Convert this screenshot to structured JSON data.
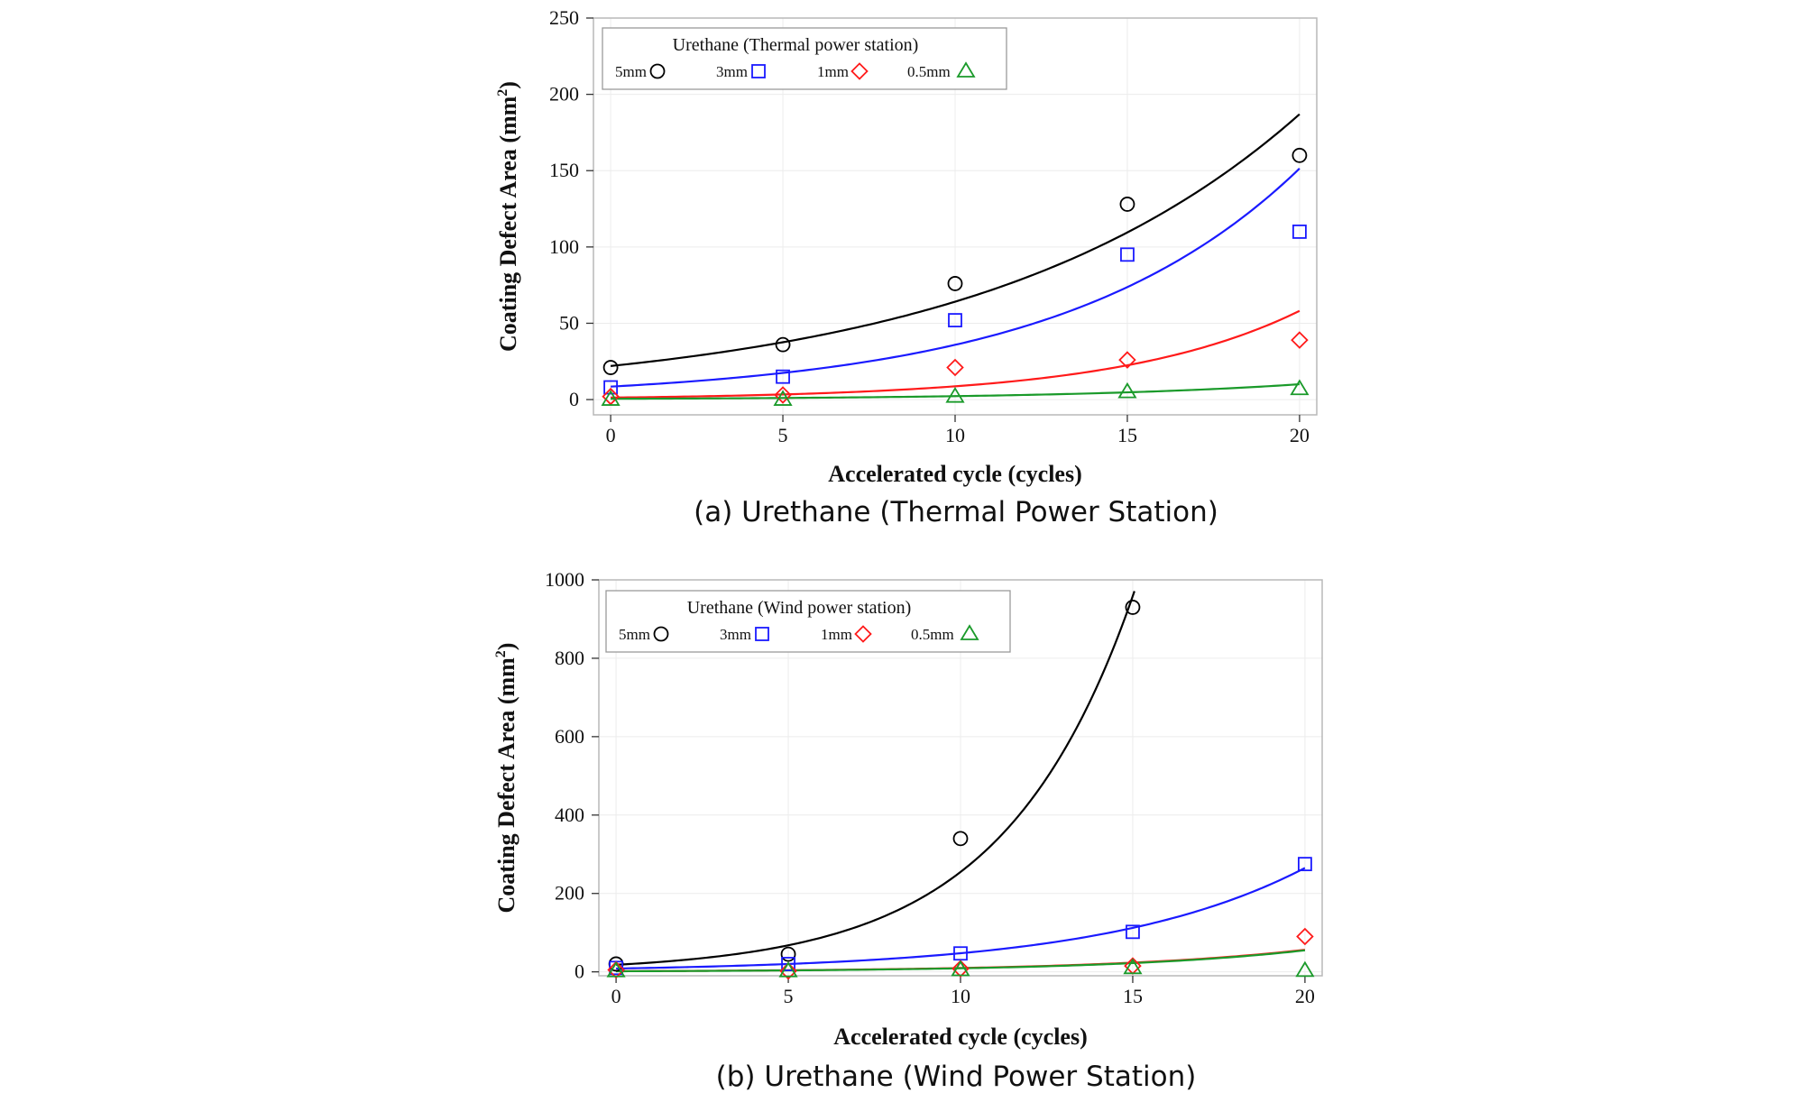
{
  "chart_data": [
    {
      "type": "scatter",
      "panel_id": "a",
      "title": "",
      "caption": "(a) Urethane (Thermal Power Station)",
      "legend_title": "Urethane (Thermal power station)",
      "legend_position": "top-left",
      "xlabel": "Accelerated cycle (cycles)",
      "ylabel_main": "Coating Defect Area (mm",
      "ylabel_sup": "2",
      "ylabel_close": ")",
      "xlim": [
        -0.5,
        20.5
      ],
      "ylim": [
        -10,
        250
      ],
      "xticks": [
        0,
        5,
        10,
        15,
        20
      ],
      "yticks": [
        0,
        50,
        100,
        150,
        200,
        250
      ],
      "grid": true,
      "x": [
        0,
        5,
        10,
        15,
        20
      ],
      "series": [
        {
          "name": "5mm",
          "marker": "circle",
          "color": "#000000",
          "values": [
            21,
            36,
            76,
            128,
            160
          ],
          "fit": {
            "a": 22.0,
            "b": 0.107
          }
        },
        {
          "name": "3mm",
          "marker": "square",
          "color": "#1a1aff",
          "values": [
            8,
            15,
            52,
            95,
            110
          ],
          "fit": {
            "a": 8.5,
            "b": 0.144
          }
        },
        {
          "name": "1mm",
          "marker": "diamond",
          "color": "#ff1a1a",
          "values": [
            2,
            3,
            21,
            26,
            39
          ],
          "fit": {
            "a": 1.3,
            "b": 0.19
          }
        },
        {
          "name": "0.5mm",
          "marker": "triangle",
          "color": "#1a9a2a",
          "values": [
            0,
            0,
            2,
            5,
            7
          ],
          "fit": {
            "a": 0.5,
            "b": 0.15
          }
        }
      ]
    },
    {
      "type": "scatter",
      "panel_id": "b",
      "title": "",
      "caption": "(b) Urethane (Wind Power Station)",
      "legend_title": "Urethane (Wind power station)",
      "legend_position": "top-left",
      "xlabel": "Accelerated cycle (cycles)",
      "ylabel_main": "Coating Defect Area (mm",
      "ylabel_sup": "2",
      "ylabel_close": ")",
      "xlim": [
        -0.5,
        20.5
      ],
      "ylim": [
        -10,
        1000
      ],
      "xticks": [
        0,
        5,
        10,
        15,
        20
      ],
      "yticks": [
        0,
        200,
        400,
        600,
        800,
        1000
      ],
      "grid": true,
      "x": [
        0,
        5,
        10,
        15,
        20
      ],
      "series": [
        {
          "name": "5mm",
          "marker": "circle",
          "color": "#000000",
          "values": [
            20,
            45,
            340,
            930,
            null
          ],
          "fit": {
            "a": 18.0,
            "b": 0.265,
            "xmax": 15.05
          }
        },
        {
          "name": "3mm",
          "marker": "square",
          "color": "#1a1aff",
          "values": [
            10,
            20,
            47,
            102,
            275
          ],
          "fit": {
            "a": 8.5,
            "b": 0.172
          }
        },
        {
          "name": "1mm",
          "marker": "diamond",
          "color": "#ff1a1a",
          "values": [
            5,
            2,
            8,
            15,
            90
          ],
          "fit": {
            "a": 1.7,
            "b": 0.175
          }
        },
        {
          "name": "0.5mm",
          "marker": "triangle",
          "color": "#1a9a2a",
          "values": [
            2,
            2,
            5,
            10,
            3
          ],
          "fit": {
            "a": 1.5,
            "b": 0.18
          }
        }
      ]
    }
  ]
}
